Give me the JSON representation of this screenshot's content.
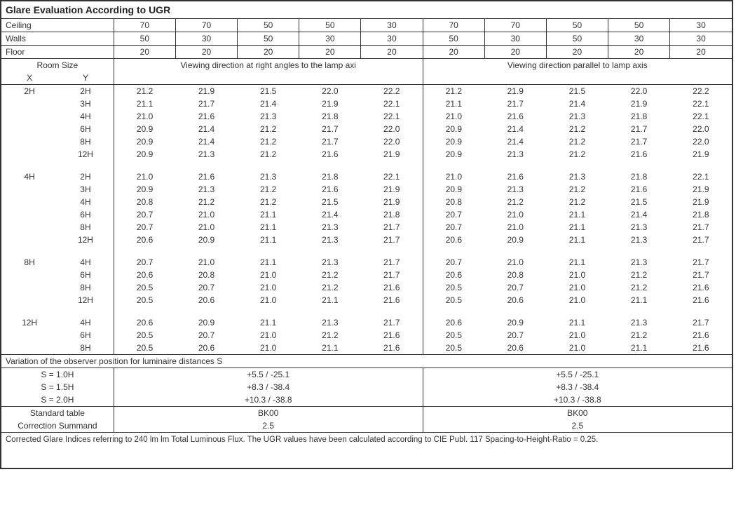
{
  "title": "Glare Evaluation According to UGR",
  "reflectance_headers": {
    "labels": [
      "Ceiling",
      "Walls",
      "Floor"
    ],
    "ceiling": [
      "70",
      "70",
      "50",
      "50",
      "30",
      "70",
      "70",
      "50",
      "50",
      "30"
    ],
    "walls": [
      "50",
      "30",
      "50",
      "30",
      "30",
      "50",
      "30",
      "50",
      "30",
      "30"
    ],
    "floor": [
      "20",
      "20",
      "20",
      "20",
      "20",
      "20",
      "20",
      "20",
      "20",
      "20"
    ]
  },
  "room_size_label": "Room Size",
  "xy_labels": [
    "X",
    "Y"
  ],
  "view_headers": {
    "right": "Viewing direction at right angles to the lamp axi",
    "parallel": "Viewing direction parallel to lamp axis"
  },
  "groups": [
    {
      "x": "2H",
      "rows": [
        {
          "y": "2H",
          "r": [
            "21.2",
            "21.9",
            "21.5",
            "22.0",
            "22.2"
          ],
          "p": [
            "21.2",
            "21.9",
            "21.5",
            "22.0",
            "22.2"
          ]
        },
        {
          "y": "3H",
          "r": [
            "21.1",
            "21.7",
            "21.4",
            "21.9",
            "22.1"
          ],
          "p": [
            "21.1",
            "21.7",
            "21.4",
            "21.9",
            "22.1"
          ]
        },
        {
          "y": "4H",
          "r": [
            "21.0",
            "21.6",
            "21.3",
            "21.8",
            "22.1"
          ],
          "p": [
            "21.0",
            "21.6",
            "21.3",
            "21.8",
            "22.1"
          ]
        },
        {
          "y": "6H",
          "r": [
            "20.9",
            "21.4",
            "21.2",
            "21.7",
            "22.0"
          ],
          "p": [
            "20.9",
            "21.4",
            "21.2",
            "21.7",
            "22.0"
          ]
        },
        {
          "y": "8H",
          "r": [
            "20.9",
            "21.4",
            "21.2",
            "21.7",
            "22.0"
          ],
          "p": [
            "20.9",
            "21.4",
            "21.2",
            "21.7",
            "22.0"
          ]
        },
        {
          "y": "12H",
          "r": [
            "20.9",
            "21.3",
            "21.2",
            "21.6",
            "21.9"
          ],
          "p": [
            "20.9",
            "21.3",
            "21.2",
            "21.6",
            "21.9"
          ]
        }
      ]
    },
    {
      "x": "4H",
      "rows": [
        {
          "y": "2H",
          "r": [
            "21.0",
            "21.6",
            "21.3",
            "21.8",
            "22.1"
          ],
          "p": [
            "21.0",
            "21.6",
            "21.3",
            "21.8",
            "22.1"
          ]
        },
        {
          "y": "3H",
          "r": [
            "20.9",
            "21.3",
            "21.2",
            "21.6",
            "21.9"
          ],
          "p": [
            "20.9",
            "21.3",
            "21.2",
            "21.6",
            "21.9"
          ]
        },
        {
          "y": "4H",
          "r": [
            "20.8",
            "21.2",
            "21.2",
            "21.5",
            "21.9"
          ],
          "p": [
            "20.8",
            "21.2",
            "21.2",
            "21.5",
            "21.9"
          ]
        },
        {
          "y": "6H",
          "r": [
            "20.7",
            "21.0",
            "21.1",
            "21.4",
            "21.8"
          ],
          "p": [
            "20.7",
            "21.0",
            "21.1",
            "21.4",
            "21.8"
          ]
        },
        {
          "y": "8H",
          "r": [
            "20.7",
            "21.0",
            "21.1",
            "21.3",
            "21.7"
          ],
          "p": [
            "20.7",
            "21.0",
            "21.1",
            "21.3",
            "21.7"
          ]
        },
        {
          "y": "12H",
          "r": [
            "20.6",
            "20.9",
            "21.1",
            "21.3",
            "21.7"
          ],
          "p": [
            "20.6",
            "20.9",
            "21.1",
            "21.3",
            "21.7"
          ]
        }
      ]
    },
    {
      "x": "8H",
      "rows": [
        {
          "y": "4H",
          "r": [
            "20.7",
            "21.0",
            "21.1",
            "21.3",
            "21.7"
          ],
          "p": [
            "20.7",
            "21.0",
            "21.1",
            "21.3",
            "21.7"
          ]
        },
        {
          "y": "6H",
          "r": [
            "20.6",
            "20.8",
            "21.0",
            "21.2",
            "21.7"
          ],
          "p": [
            "20.6",
            "20.8",
            "21.0",
            "21.2",
            "21.7"
          ]
        },
        {
          "y": "8H",
          "r": [
            "20.5",
            "20.7",
            "21.0",
            "21.2",
            "21.6"
          ],
          "p": [
            "20.5",
            "20.7",
            "21.0",
            "21.2",
            "21.6"
          ]
        },
        {
          "y": "12H",
          "r": [
            "20.5",
            "20.6",
            "21.0",
            "21.1",
            "21.6"
          ],
          "p": [
            "20.5",
            "20.6",
            "21.0",
            "21.1",
            "21.6"
          ]
        }
      ]
    },
    {
      "x": "12H",
      "rows": [
        {
          "y": "4H",
          "r": [
            "20.6",
            "20.9",
            "21.1",
            "21.3",
            "21.7"
          ],
          "p": [
            "20.6",
            "20.9",
            "21.1",
            "21.3",
            "21.7"
          ]
        },
        {
          "y": "6H",
          "r": [
            "20.5",
            "20.7",
            "21.0",
            "21.2",
            "21.6"
          ],
          "p": [
            "20.5",
            "20.7",
            "21.0",
            "21.2",
            "21.6"
          ]
        },
        {
          "y": "8H",
          "r": [
            "20.5",
            "20.6",
            "21.0",
            "21.1",
            "21.6"
          ],
          "p": [
            "20.5",
            "20.6",
            "21.0",
            "21.1",
            "21.6"
          ]
        }
      ]
    }
  ],
  "variation": {
    "title": "Variation of the observer position for luminaire distances S",
    "rows": [
      {
        "label": "S = 1.0H",
        "r": "+5.5 / -25.1",
        "p": "+5.5 / -25.1"
      },
      {
        "label": "S = 1.5H",
        "r": "+8.3 / -38.4",
        "p": "+8.3 / -38.4"
      },
      {
        "label": "S = 2.0H",
        "r": "+10.3 / -38.8",
        "p": "+10.3 / -38.8"
      }
    ]
  },
  "standard": {
    "rows": [
      {
        "label": "Standard table",
        "r": "BK00",
        "p": "BK00"
      },
      {
        "label": "Correction Summand",
        "r": "2.5",
        "p": "2.5"
      }
    ]
  },
  "footnote": "Corrected Glare Indices referring to 240 lm lm Total Luminous Flux. The UGR values have been calculated according to CIE Publ. 117    Spacing-to-Height-Ratio = 0.25."
}
